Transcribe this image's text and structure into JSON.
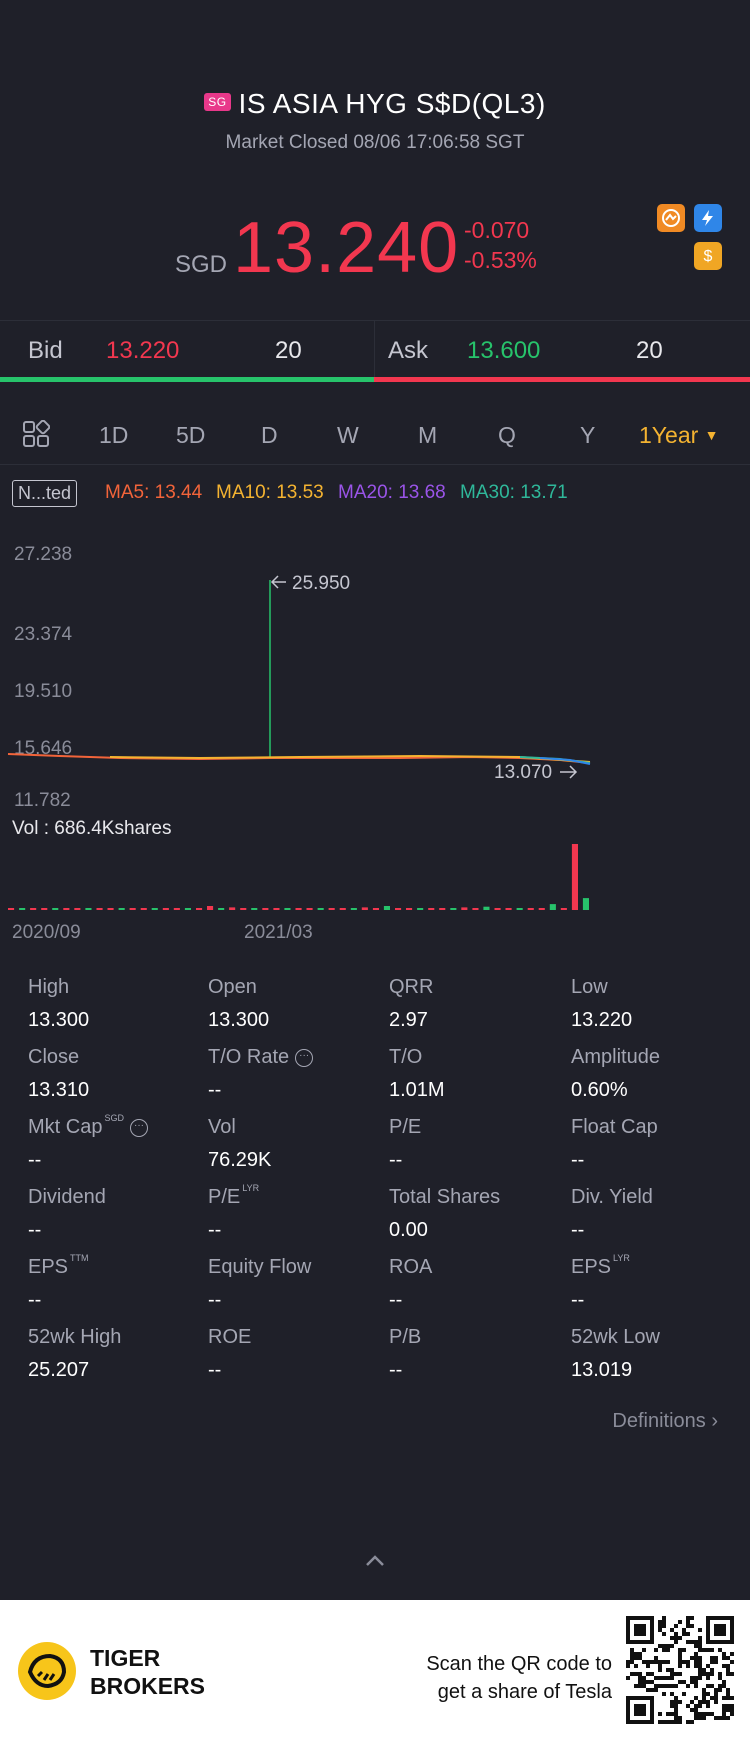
{
  "header": {
    "region_badge": "SG",
    "title": "IS ASIA HYG S$D(QL3)",
    "status": "Market Closed 08/06 17:06:58 SGT",
    "currency": "SGD",
    "price": "13.240",
    "change": "-0.070",
    "change_pct": "-0.53%",
    "icons": [
      "exchange-icon",
      "flash-icon",
      "dollar-icon"
    ]
  },
  "orderbook": {
    "bid_label": "Bid",
    "bid_price": "13.220",
    "bid_qty": "20",
    "ask_label": "Ask",
    "ask_price": "13.600",
    "ask_qty": "20",
    "bid_share": 0.5
  },
  "tabs": {
    "items": [
      "1D",
      "5D",
      "D",
      "W",
      "M",
      "Q",
      "Y"
    ],
    "active": "1Year"
  },
  "indicators": {
    "adjust_tag": "N...ted",
    "ma5": "MA5: 13.44",
    "ma10": "MA10: 13.53",
    "ma20": "MA20: 13.68",
    "ma30": "MA30: 13.71"
  },
  "chart_data": {
    "type": "line",
    "y_ticks": [
      "27.238",
      "23.374",
      "19.510",
      "15.646",
      "11.782"
    ],
    "ylim": [
      11.782,
      27.238
    ],
    "spike_label": "25.950",
    "last_label": "13.070",
    "x_ticks": [
      "2020/09",
      "2021/03"
    ],
    "volume_label": "Vol  : 686.4Kshares",
    "volume_series": [
      0.02,
      0.02,
      0.02,
      0.02,
      0.02,
      0.02,
      0.02,
      0.02,
      0.03,
      0.02,
      0.02,
      0.02,
      0.02,
      0.02,
      0.03,
      0.02,
      0.02,
      0.02,
      0.06,
      0.02,
      0.04,
      0.02,
      0.02,
      0.02,
      0.03,
      0.02,
      0.02,
      0.02,
      0.02,
      0.03,
      0.02,
      0.02,
      0.04,
      0.02,
      0.06,
      0.03,
      0.02,
      0.02,
      0.02,
      0.03,
      0.02,
      0.04,
      0.02,
      0.05,
      0.02,
      0.02,
      0.03,
      0.02,
      0.02,
      0.09,
      0.03,
      1.0,
      0.18
    ]
  },
  "stats": [
    {
      "label": "High",
      "value": "13.300"
    },
    {
      "label": "Open",
      "value": "13.300"
    },
    {
      "label": "QRR",
      "value": "2.97"
    },
    {
      "label": "Low",
      "value": "13.220"
    },
    {
      "label": "Close",
      "value": "13.310"
    },
    {
      "label": "T/O Rate",
      "value": "--"
    },
    {
      "label": "T/O",
      "value": "1.01M"
    },
    {
      "label": "Amplitude",
      "value": "0.60%"
    },
    {
      "label": "Mkt Cap",
      "value": "--",
      "sup": "SGD"
    },
    {
      "label": "Vol",
      "value": "76.29K"
    },
    {
      "label": "P/E",
      "value": "--"
    },
    {
      "label": "Float Cap",
      "value": "--"
    },
    {
      "label": "Dividend",
      "value": "--"
    },
    {
      "label": "P/E",
      "value": "--",
      "sup": "LYR"
    },
    {
      "label": "Total Shares",
      "value": "0.00"
    },
    {
      "label": "Div. Yield",
      "value": "--"
    },
    {
      "label": "EPS",
      "value": "--",
      "sup": "TTM"
    },
    {
      "label": "Equity Flow",
      "value": "--"
    },
    {
      "label": "ROA",
      "value": "--"
    },
    {
      "label": "EPS",
      "value": "--",
      "sup": "LYR"
    },
    {
      "label": "52wk High",
      "value": "25.207"
    },
    {
      "label": "ROE",
      "value": "--"
    },
    {
      "label": "P/B",
      "value": "--"
    },
    {
      "label": "52wk Low",
      "value": "13.019"
    }
  ],
  "definitions_link": "Definitions",
  "footer": {
    "brand_line1": "TIGER",
    "brand_line2": "BROKERS",
    "scan_line1": "Scan the QR code to",
    "scan_line2": "get a share of Tesla"
  },
  "colors": {
    "up": "#27c36b",
    "down": "#f2374f",
    "accent": "#f4b331",
    "ma5": "#f2643a",
    "ma10": "#f4b331",
    "ma20": "#9a54e8",
    "ma30": "#2fb89a"
  }
}
